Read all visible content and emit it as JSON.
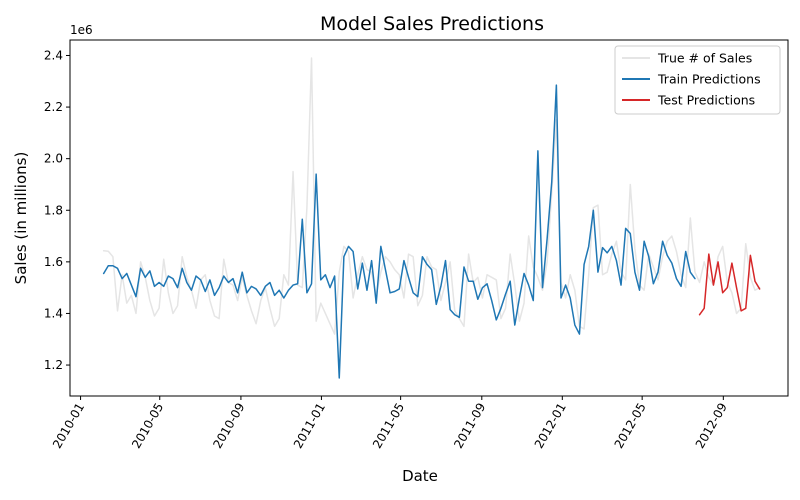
{
  "chart_data": {
    "type": "line",
    "title": "Model Sales Predictions",
    "xlabel": "Date",
    "ylabel": "Sales (in millions)",
    "y_offset_text": "1e6",
    "xlim": [
      "2009-12-16",
      "2012-12-08"
    ],
    "ylim": [
      1080000,
      2460000
    ],
    "x_ticks": [
      "2010-01",
      "2010-05",
      "2010-09",
      "2011-01",
      "2011-05",
      "2011-09",
      "2012-01",
      "2012-05",
      "2012-09"
    ],
    "y_ticks": [
      1200000,
      1400000,
      1600000,
      1800000,
      2000000,
      2200000,
      2400000
    ],
    "y_tick_labels": [
      "1.2",
      "1.4",
      "1.6",
      "1.8",
      "2.0",
      "2.2",
      "2.4"
    ],
    "legend": {
      "position": "top-right"
    },
    "series": [
      {
        "name": "True # of Sales",
        "color": "#e5e5e5",
        "x": [
          "2010-02-05",
          "2010-02-12",
          "2010-02-19",
          "2010-02-26",
          "2010-03-05",
          "2010-03-12",
          "2010-03-19",
          "2010-03-26",
          "2010-04-02",
          "2010-04-09",
          "2010-04-16",
          "2010-04-23",
          "2010-04-30",
          "2010-05-07",
          "2010-05-14",
          "2010-05-21",
          "2010-05-28",
          "2010-06-04",
          "2010-06-11",
          "2010-06-18",
          "2010-06-25",
          "2010-07-02",
          "2010-07-09",
          "2010-07-16",
          "2010-07-23",
          "2010-07-30",
          "2010-08-06",
          "2010-08-13",
          "2010-08-20",
          "2010-08-27",
          "2010-09-03",
          "2010-09-10",
          "2010-09-17",
          "2010-09-24",
          "2010-10-01",
          "2010-10-08",
          "2010-10-15",
          "2010-10-22",
          "2010-10-29",
          "2010-11-05",
          "2010-11-12",
          "2010-11-19",
          "2010-11-26",
          "2010-12-03",
          "2010-12-10",
          "2010-12-17",
          "2010-12-24",
          "2010-12-31",
          "2011-01-07",
          "2011-01-14",
          "2011-01-21",
          "2011-01-28",
          "2011-02-04",
          "2011-02-11",
          "2011-02-18",
          "2011-02-25",
          "2011-03-04",
          "2011-03-11",
          "2011-03-18",
          "2011-03-25",
          "2011-04-01",
          "2011-04-08",
          "2011-04-15",
          "2011-04-22",
          "2011-04-29",
          "2011-05-06",
          "2011-05-13",
          "2011-05-20",
          "2011-05-27",
          "2011-06-03",
          "2011-06-10",
          "2011-06-17",
          "2011-06-24",
          "2011-07-01",
          "2011-07-08",
          "2011-07-15",
          "2011-07-22",
          "2011-07-29",
          "2011-08-05",
          "2011-08-12",
          "2011-08-19",
          "2011-08-26",
          "2011-09-02",
          "2011-09-09",
          "2011-09-16",
          "2011-09-23",
          "2011-09-30",
          "2011-10-07",
          "2011-10-14",
          "2011-10-21",
          "2011-10-28",
          "2011-11-04",
          "2011-11-11",
          "2011-11-18",
          "2011-11-25",
          "2011-12-02",
          "2011-12-09",
          "2011-12-16",
          "2011-12-23",
          "2011-12-30",
          "2012-01-06",
          "2012-01-13",
          "2012-01-20",
          "2012-01-27",
          "2012-02-03",
          "2012-02-10",
          "2012-02-17",
          "2012-02-24",
          "2012-03-02",
          "2012-03-09",
          "2012-03-16",
          "2012-03-23",
          "2012-03-30",
          "2012-04-06",
          "2012-04-13",
          "2012-04-20",
          "2012-04-27",
          "2012-05-04",
          "2012-05-11",
          "2012-05-18",
          "2012-05-25",
          "2012-06-01",
          "2012-06-08",
          "2012-06-15",
          "2012-06-22",
          "2012-06-29",
          "2012-07-06",
          "2012-07-13",
          "2012-07-20",
          "2012-07-27",
          "2012-08-03",
          "2012-08-10",
          "2012-08-17",
          "2012-08-24",
          "2012-08-31",
          "2012-09-07",
          "2012-09-14",
          "2012-09-21",
          "2012-09-28",
          "2012-10-05",
          "2012-10-12",
          "2012-10-19",
          "2012-10-26"
        ],
        "y": [
          1643000,
          1641000,
          1620000,
          1410000,
          1550000,
          1440000,
          1470000,
          1400000,
          1600000,
          1540000,
          1450000,
          1390000,
          1420000,
          1610000,
          1480000,
          1400000,
          1430000,
          1620000,
          1540000,
          1490000,
          1420000,
          1530000,
          1550000,
          1450000,
          1390000,
          1380000,
          1610000,
          1520000,
          1510000,
          1450000,
          1540000,
          1470000,
          1410000,
          1360000,
          1450000,
          1500000,
          1420000,
          1350000,
          1380000,
          1550000,
          1510000,
          1950000,
          1510000,
          1500000,
          1810000,
          2390000,
          1370000,
          1440000,
          1400000,
          1360000,
          1320000,
          1560000,
          1660000,
          1640000,
          1460000,
          1550000,
          1620000,
          1570000,
          1560000,
          1470000,
          1560000,
          1620000,
          1600000,
          1570000,
          1550000,
          1460000,
          1630000,
          1620000,
          1430000,
          1470000,
          1620000,
          1580000,
          1570000,
          1450000,
          1520000,
          1600000,
          1410000,
          1380000,
          1350000,
          1630000,
          1520000,
          1540000,
          1460000,
          1550000,
          1540000,
          1530000,
          1380000,
          1420000,
          1630000,
          1510000,
          1370000,
          1440000,
          1700000,
          1580000,
          1540000,
          1490000,
          1600000,
          1870000,
          2150000,
          1520000,
          1460000,
          1550000,
          1490000,
          1350000,
          1340000,
          1550000,
          1810000,
          1820000,
          1550000,
          1560000,
          1630000,
          1680000,
          1560000,
          1530000,
          1900000,
          1650000,
          1510000,
          1490000,
          1630000,
          1580000,
          1530000,
          1620000,
          1680000,
          1700000,
          1640000,
          1550000,
          1500000,
          1770000,
          1560000,
          1520000,
          1600000,
          1540000,
          1510000,
          1620000,
          1660000,
          1520000,
          1480000,
          1400000,
          1420000,
          1670000,
          1540000,
          1490000,
          1500000
        ]
      },
      {
        "name": "Train Predictions",
        "color": "#1f77b4",
        "x": [
          "2010-02-05",
          "2010-02-12",
          "2010-02-19",
          "2010-02-26",
          "2010-03-05",
          "2010-03-12",
          "2010-03-19",
          "2010-03-26",
          "2010-04-02",
          "2010-04-09",
          "2010-04-16",
          "2010-04-23",
          "2010-04-30",
          "2010-05-07",
          "2010-05-14",
          "2010-05-21",
          "2010-05-28",
          "2010-06-04",
          "2010-06-11",
          "2010-06-18",
          "2010-06-25",
          "2010-07-02",
          "2010-07-09",
          "2010-07-16",
          "2010-07-23",
          "2010-07-30",
          "2010-08-06",
          "2010-08-13",
          "2010-08-20",
          "2010-08-27",
          "2010-09-03",
          "2010-09-10",
          "2010-09-17",
          "2010-09-24",
          "2010-10-01",
          "2010-10-08",
          "2010-10-15",
          "2010-10-22",
          "2010-10-29",
          "2010-11-05",
          "2010-11-12",
          "2010-11-19",
          "2010-11-26",
          "2010-12-03",
          "2010-12-10",
          "2010-12-17",
          "2010-12-24",
          "2010-12-31",
          "2011-01-07",
          "2011-01-14",
          "2011-01-21",
          "2011-01-28",
          "2011-02-04",
          "2011-02-11",
          "2011-02-18",
          "2011-02-25",
          "2011-03-04",
          "2011-03-11",
          "2011-03-18",
          "2011-03-25",
          "2011-04-01",
          "2011-04-08",
          "2011-04-15",
          "2011-04-22",
          "2011-04-29",
          "2011-05-06",
          "2011-05-13",
          "2011-05-20",
          "2011-05-27",
          "2011-06-03",
          "2011-06-10",
          "2011-06-17",
          "2011-06-24",
          "2011-07-01",
          "2011-07-08",
          "2011-07-15",
          "2011-07-22",
          "2011-07-29",
          "2011-08-05",
          "2011-08-12",
          "2011-08-19",
          "2011-08-26",
          "2011-09-02",
          "2011-09-09",
          "2011-09-16",
          "2011-09-23",
          "2011-09-30",
          "2011-10-07",
          "2011-10-14",
          "2011-10-21",
          "2011-10-28",
          "2011-11-04",
          "2011-11-11",
          "2011-11-18",
          "2011-11-25",
          "2011-12-02",
          "2011-12-09",
          "2011-12-16",
          "2011-12-23",
          "2011-12-30",
          "2012-01-06",
          "2012-01-13",
          "2012-01-20",
          "2012-01-27",
          "2012-02-03",
          "2012-02-10",
          "2012-02-17",
          "2012-02-24",
          "2012-03-02",
          "2012-03-09",
          "2012-03-16",
          "2012-03-23",
          "2012-03-30",
          "2012-04-06",
          "2012-04-13",
          "2012-04-20",
          "2012-04-27",
          "2012-05-04",
          "2012-05-11",
          "2012-05-18",
          "2012-05-25",
          "2012-06-01",
          "2012-06-08",
          "2012-06-15",
          "2012-06-22",
          "2012-06-29",
          "2012-07-06",
          "2012-07-13",
          "2012-07-20"
        ],
        "y": [
          1555000,
          1585000,
          1585000,
          1575000,
          1535000,
          1555000,
          1510000,
          1465000,
          1575000,
          1540000,
          1565000,
          1505000,
          1520000,
          1505000,
          1545000,
          1535000,
          1500000,
          1575000,
          1520000,
          1490000,
          1545000,
          1530000,
          1485000,
          1530000,
          1470000,
          1500000,
          1545000,
          1520000,
          1535000,
          1480000,
          1560000,
          1480000,
          1505000,
          1495000,
          1470000,
          1505000,
          1520000,
          1470000,
          1490000,
          1460000,
          1490000,
          1510000,
          1515000,
          1765000,
          1480000,
          1515000,
          1940000,
          1530000,
          1550000,
          1500000,
          1545000,
          1150000,
          1620000,
          1660000,
          1640000,
          1495000,
          1595000,
          1490000,
          1605000,
          1440000,
          1660000,
          1570000,
          1480000,
          1485000,
          1495000,
          1605000,
          1540000,
          1480000,
          1465000,
          1620000,
          1590000,
          1570000,
          1435000,
          1505000,
          1605000,
          1415000,
          1395000,
          1385000,
          1580000,
          1525000,
          1525000,
          1455000,
          1500000,
          1515000,
          1450000,
          1375000,
          1420000,
          1475000,
          1525000,
          1355000,
          1460000,
          1555000,
          1510000,
          1450000,
          2030000,
          1500000,
          1690000,
          1910000,
          2285000,
          1460000,
          1510000,
          1460000,
          1355000,
          1320000,
          1590000,
          1660000,
          1800000,
          1560000,
          1655000,
          1635000,
          1660000,
          1605000,
          1510000,
          1730000,
          1710000,
          1560000,
          1490000,
          1680000,
          1620000,
          1515000,
          1560000,
          1680000,
          1625000,
          1595000,
          1535000,
          1505000,
          1640000,
          1560000,
          1535000
        ]
      },
      {
        "name": "Test Predictions",
        "color": "#d62728",
        "x": [
          "2012-07-27",
          "2012-08-03",
          "2012-08-10",
          "2012-08-17",
          "2012-08-24",
          "2012-08-31",
          "2012-09-07",
          "2012-09-14",
          "2012-09-21",
          "2012-09-28",
          "2012-10-05",
          "2012-10-12",
          "2012-10-19",
          "2012-10-26"
        ],
        "y": [
          1395000,
          1420000,
          1630000,
          1510000,
          1600000,
          1480000,
          1500000,
          1595000,
          1500000,
          1410000,
          1420000,
          1625000,
          1525000,
          1495000
        ]
      }
    ]
  }
}
